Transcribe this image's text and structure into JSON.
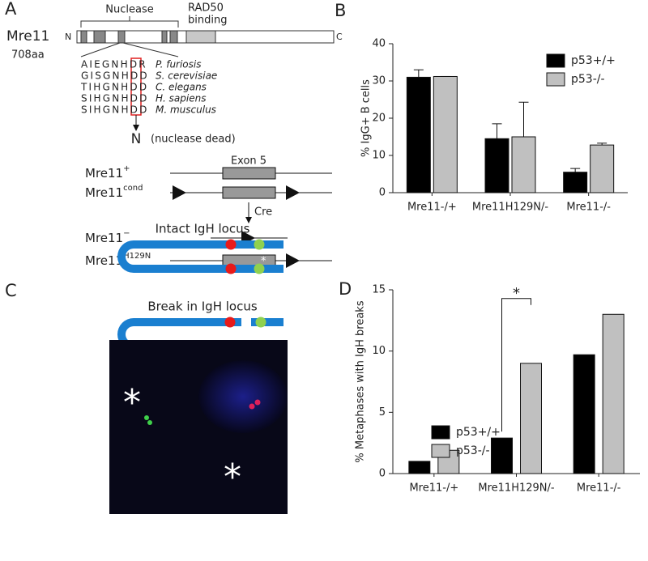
{
  "panel_labels": [
    "A",
    "B",
    "C",
    "D"
  ],
  "panel_a": {
    "protein": "Mre11",
    "n_term": "N",
    "c_term": "C",
    "length": "708aa",
    "nuclease": "Nuclease",
    "rad50": [
      "RAD50",
      "binding"
    ],
    "alignment": [
      {
        "seq": "AIEGNHDR",
        "species": "P. furiosis"
      },
      {
        "seq": "GISGNHDD",
        "species": "S. cerevisiae"
      },
      {
        "seq": "TIHGNHDD",
        "species": "C. elegans"
      },
      {
        "seq": "SIHGNHDD",
        "species": "H. sapiens"
      },
      {
        "seq": "SIHGNHDD",
        "species": "M. musculus"
      }
    ],
    "mutation": "N",
    "mutation_note": "(nuclease dead)",
    "exon": "Exon 5",
    "cre": "Cre",
    "star": "*",
    "alleles": [
      {
        "base": "Mre11",
        "sup": "+"
      },
      {
        "base": "Mre11",
        "sup": "cond"
      },
      {
        "base": "Mre11",
        "sup": "−"
      },
      {
        "base": "Mre11",
        "sup": "H129N"
      }
    ]
  },
  "panel_c": {
    "intact": "Intact IgH locus",
    "break": "Break in IgH locus",
    "micrograph_marks": [
      "*",
      "*"
    ]
  },
  "chart_data": [
    {
      "type": "bar",
      "y_label": "% IgG+ B cells",
      "categories": [
        "Mre11-/+",
        "Mre11H129N/-",
        "Mre11-/-"
      ],
      "series": [
        {
          "name": "p53+/+",
          "color": "#000000",
          "values": [
            31,
            14.5,
            5.5
          ],
          "errors": [
            2,
            4,
            1
          ]
        },
        {
          "name": "p53-/-",
          "color": "#c0c0c0",
          "values": [
            31.2,
            15,
            12.8
          ],
          "errors": [
            0,
            9.3,
            0.5
          ]
        }
      ],
      "ylim": [
        0,
        40
      ],
      "yticks": [
        0,
        10,
        20,
        30,
        40
      ],
      "legend": "top-right"
    },
    {
      "type": "bar",
      "y_label": "% Metaphases with IgH breaks",
      "categories": [
        "Mre11-/+",
        "Mre11H129N/-",
        "Mre11-/-"
      ],
      "series": [
        {
          "name": "p53+/+",
          "color": "#000000",
          "values": [
            1,
            2.9,
            9.7
          ]
        },
        {
          "name": "p53-/-",
          "color": "#c0c0c0",
          "values": [
            1.9,
            9,
            13
          ]
        }
      ],
      "ylim": [
        0,
        15
      ],
      "yticks": [
        0,
        5,
        10,
        15
      ],
      "legend": "top-left",
      "annotation": "*"
    }
  ]
}
